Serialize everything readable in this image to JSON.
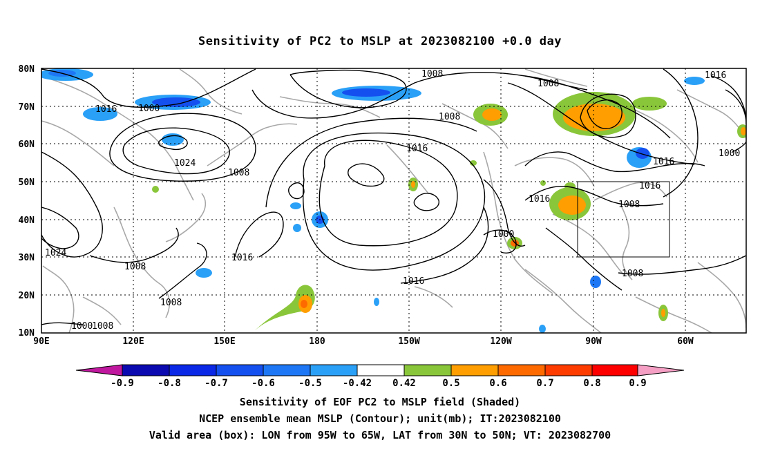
{
  "title": "Sensitivity of PC2 to MSLP at 2023082100 +0.0 day",
  "lat_labels": [
    "80N",
    "70N",
    "60N",
    "50N",
    "40N",
    "30N",
    "20N",
    "10N"
  ],
  "lon_labels": [
    "90E",
    "120E",
    "150E",
    "180",
    "150W",
    "120W",
    "90W",
    "60W"
  ],
  "contour_labels": [
    {
      "text": "1008"
    },
    {
      "text": "1016"
    },
    {
      "text": "1008"
    },
    {
      "text": "1016"
    },
    {
      "text": "1000"
    },
    {
      "text": "1008"
    },
    {
      "text": "1016"
    },
    {
      "text": "1000"
    },
    {
      "text": "1016"
    },
    {
      "text": "1024"
    },
    {
      "text": "1008"
    },
    {
      "text": "1016"
    },
    {
      "text": "1016"
    },
    {
      "text": "1008"
    },
    {
      "text": "1000"
    },
    {
      "text": "1024"
    },
    {
      "text": "1016"
    },
    {
      "text": "1008"
    },
    {
      "text": "1008"
    },
    {
      "text": "1016"
    },
    {
      "text": "1008"
    },
    {
      "text": "1000"
    },
    {
      "text": "1008"
    }
  ],
  "colorbar": {
    "labels": [
      "-0.9",
      "-0.8",
      "-0.7",
      "-0.6",
      "-0.5",
      "-0.42",
      "0.42",
      "0.5",
      "0.6",
      "0.7",
      "0.8",
      "0.9"
    ],
    "colors": [
      "#c0189e",
      "#0a0ab0",
      "#0a28e6",
      "#1450f0",
      "#1e78f5",
      "#2aa0f7",
      "#00c8f8",
      "#ffffff",
      "#8ac63a",
      "#ff9e00",
      "#ff6a00",
      "#ff3c00",
      "#ff0000",
      "#f59fc4"
    ]
  },
  "captions": [
    "Sensitivity of EOF PC2 to MSLP field (Shaded)",
    "NCEP ensemble mean MSLP (Contour); unit(mb); IT:2023082100",
    "Valid area (box): LON from 95W to 65W, LAT from 30N to 50N; VT: 2023082700"
  ]
}
